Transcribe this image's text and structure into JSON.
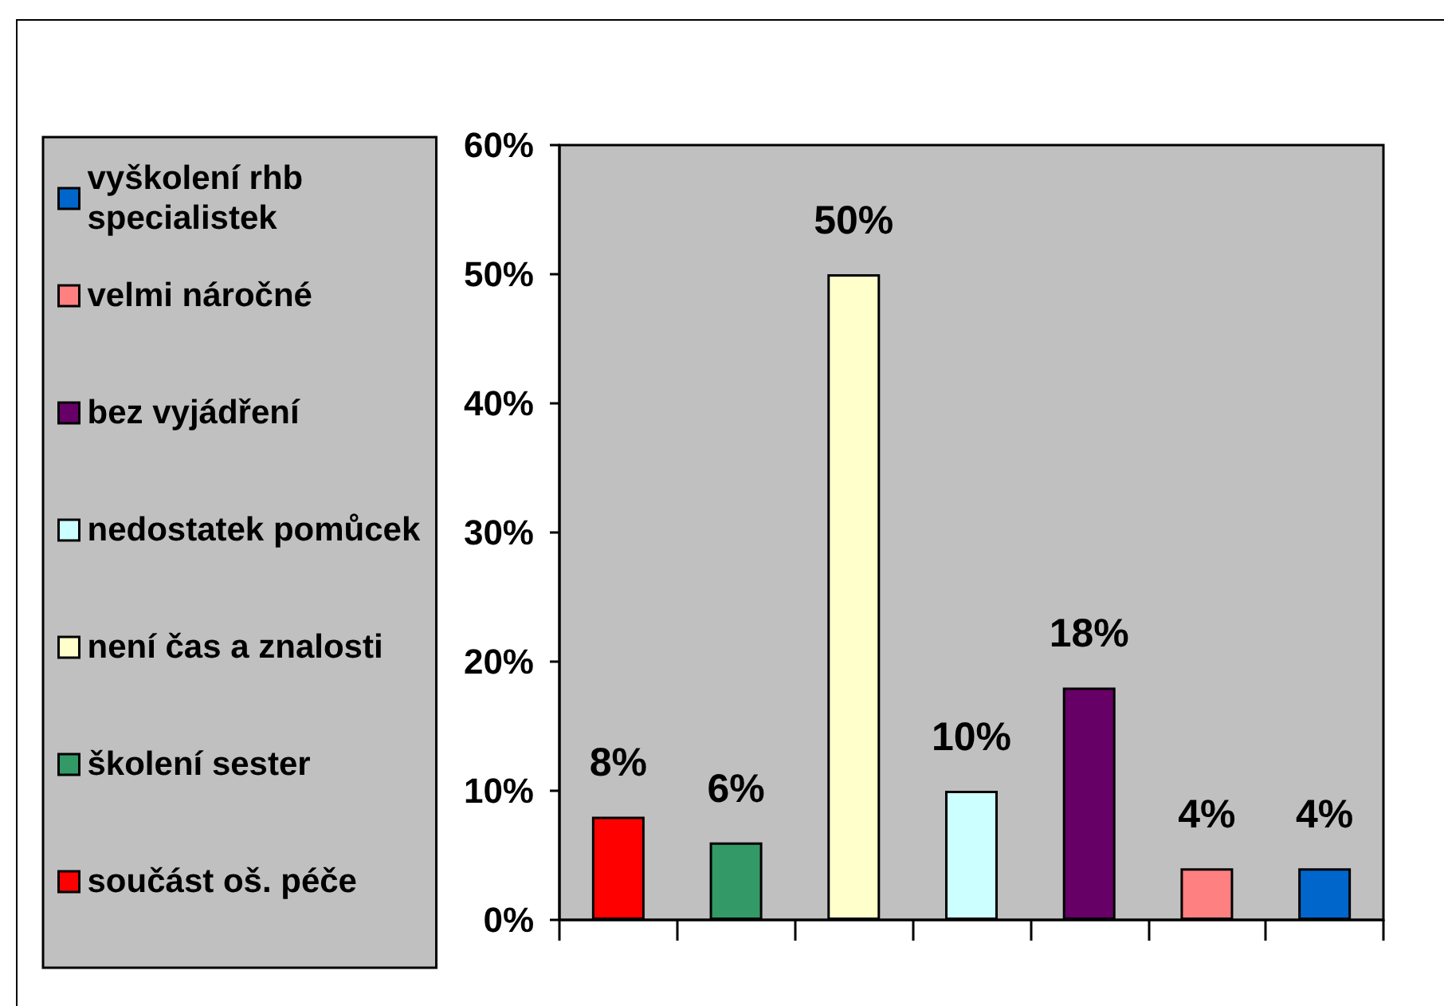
{
  "chart_data": {
    "type": "bar",
    "categories": [
      null,
      null,
      null,
      null,
      null,
      null,
      null
    ],
    "series": [
      {
        "name": "součást oš. péče",
        "color": "#ff0000",
        "values": [
          8,
          null,
          null,
          null,
          null,
          null,
          null
        ],
        "value_labels": [
          "8%",
          null,
          null,
          null,
          null,
          null,
          null
        ]
      },
      {
        "name": "školení sester",
        "color": "#339966",
        "values": [
          null,
          6,
          null,
          null,
          null,
          null,
          null
        ],
        "value_labels": [
          null,
          "6%",
          null,
          null,
          null,
          null,
          null
        ]
      },
      {
        "name": "není čas a znalosti",
        "color": "#ffffcc",
        "values": [
          null,
          null,
          50,
          null,
          null,
          null,
          null
        ],
        "value_labels": [
          null,
          null,
          "50%",
          null,
          null,
          null,
          null
        ]
      },
      {
        "name": "nedostatek pomůcek",
        "color": "#ccffff",
        "values": [
          null,
          null,
          null,
          10,
          null,
          null,
          null
        ],
        "value_labels": [
          null,
          null,
          null,
          "10%",
          null,
          null,
          null
        ]
      },
      {
        "name": "bez vyjádření",
        "color": "#660066",
        "values": [
          null,
          null,
          null,
          null,
          18,
          null,
          null
        ],
        "value_labels": [
          null,
          null,
          null,
          null,
          "18%",
          null,
          null
        ]
      },
      {
        "name": "velmi náročné",
        "color": "#ff8080",
        "values": [
          null,
          null,
          null,
          null,
          null,
          4,
          null
        ],
        "value_labels": [
          null,
          null,
          null,
          null,
          null,
          "4%",
          null
        ]
      },
      {
        "name": "vyškolení rhb specialistek",
        "color": "#0066cc",
        "values": [
          null,
          null,
          null,
          null,
          null,
          null,
          4
        ],
        "value_labels": [
          null,
          null,
          null,
          null,
          null,
          null,
          "4%"
        ]
      }
    ],
    "ylim": [
      0,
      60
    ],
    "yticks": [
      {
        "value": 0,
        "label": "0%"
      },
      {
        "value": 10,
        "label": "10%"
      },
      {
        "value": 20,
        "label": "20%"
      },
      {
        "value": 30,
        "label": "30%"
      },
      {
        "value": 40,
        "label": "40%"
      },
      {
        "value": 50,
        "label": "50%"
      },
      {
        "value": 60,
        "label": "60%"
      }
    ],
    "legend": "left"
  }
}
